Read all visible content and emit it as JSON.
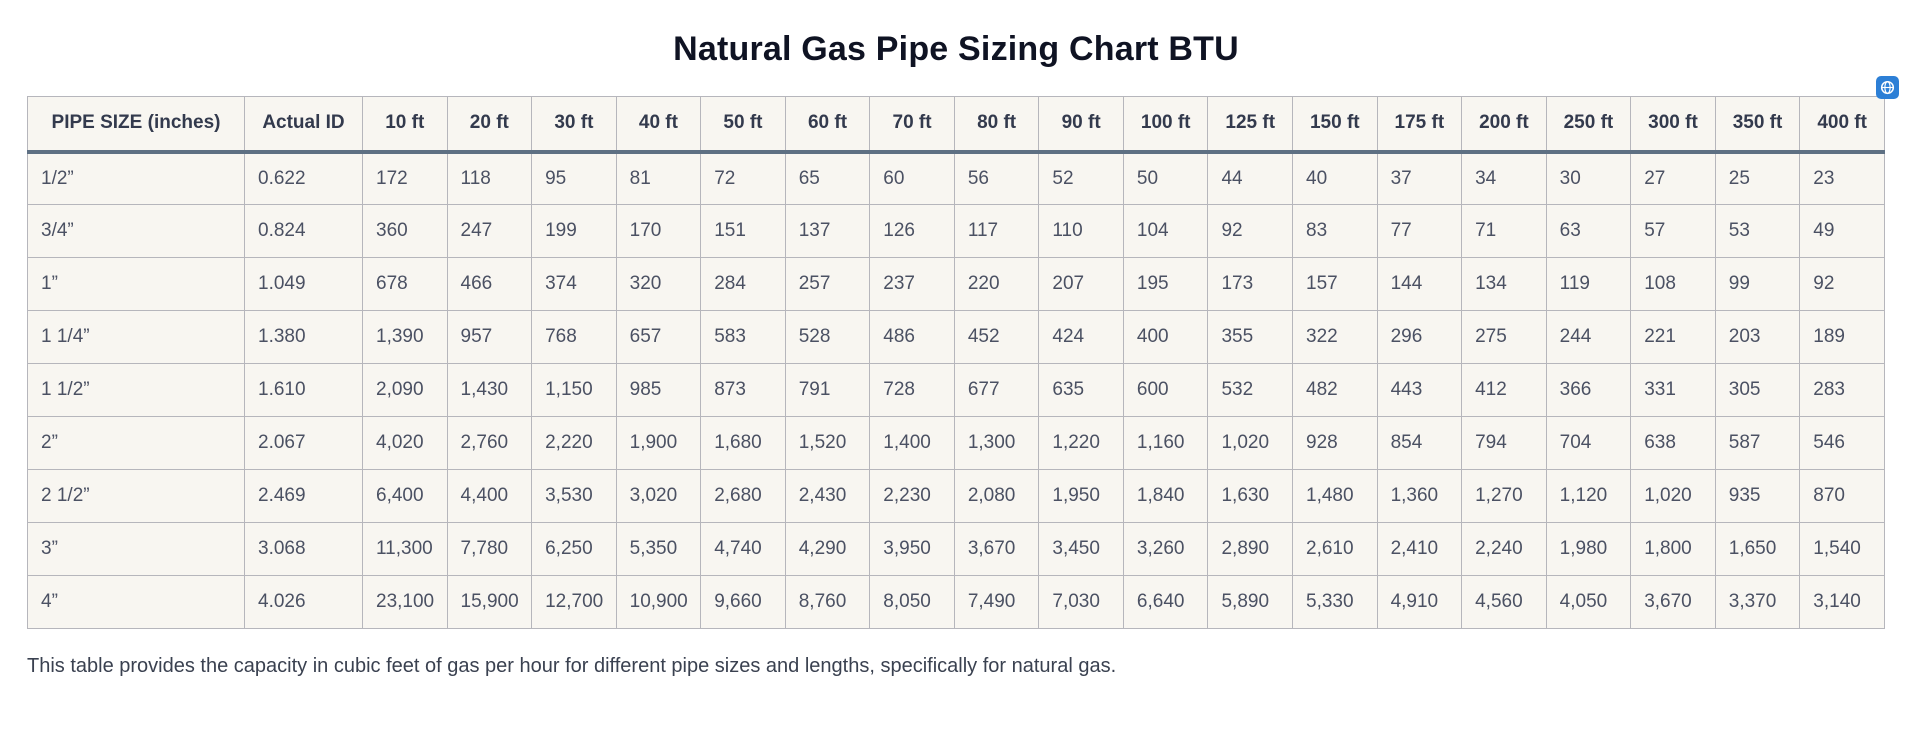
{
  "page": {
    "footnote_label": "table-caption"
  },
  "colors": {
    "cell_background": "#f8f6f1",
    "cell_border": "#b6b6bc",
    "header_rule": "#5e7083",
    "header_text": "#333a4d",
    "body_text": "#4b5163",
    "title_text": "#0f1323",
    "badge_blue": "#2c7fd6",
    "bottom_strip": "#2d2d31"
  },
  "icons": {
    "badge_icon": "globe-icon"
  },
  "chart_data": {
    "type": "table",
    "title": "Natural Gas Pipe Sizing Chart BTU",
    "caption": "This table provides the capacity in cubic feet of gas per hour for different pipe sizes and lengths, specifically for natural gas.",
    "columns": [
      "PIPE SIZE (inches)",
      "Actual ID",
      "10 ft",
      "20 ft",
      "30 ft",
      "40 ft",
      "50 ft",
      "60 ft",
      "70 ft",
      "80 ft",
      "90 ft",
      "100 ft",
      "125 ft",
      "150 ft",
      "175 ft",
      "200 ft",
      "250 ft",
      "300 ft",
      "350 ft",
      "400 ft"
    ],
    "rows": [
      [
        "1/2”",
        "0.622",
        "172",
        "118",
        "95",
        "81",
        "72",
        "65",
        "60",
        "56",
        "52",
        "50",
        "44",
        "40",
        "37",
        "34",
        "30",
        "27",
        "25",
        "23"
      ],
      [
        "3/4”",
        "0.824",
        "360",
        "247",
        "199",
        "170",
        "151",
        "137",
        "126",
        "117",
        "110",
        "104",
        "92",
        "83",
        "77",
        "71",
        "63",
        "57",
        "53",
        "49"
      ],
      [
        "1”",
        "1.049",
        "678",
        "466",
        "374",
        "320",
        "284",
        "257",
        "237",
        "220",
        "207",
        "195",
        "173",
        "157",
        "144",
        "134",
        "119",
        "108",
        "99",
        "92"
      ],
      [
        "1 1/4”",
        "1.380",
        "1,390",
        "957",
        "768",
        "657",
        "583",
        "528",
        "486",
        "452",
        "424",
        "400",
        "355",
        "322",
        "296",
        "275",
        "244",
        "221",
        "203",
        "189"
      ],
      [
        "1 1/2”",
        "1.610",
        "2,090",
        "1,430",
        "1,150",
        "985",
        "873",
        "791",
        "728",
        "677",
        "635",
        "600",
        "532",
        "482",
        "443",
        "412",
        "366",
        "331",
        "305",
        "283"
      ],
      [
        "2”",
        "2.067",
        "4,020",
        "2,760",
        "2,220",
        "1,900",
        "1,680",
        "1,520",
        "1,400",
        "1,300",
        "1,220",
        "1,160",
        "1,020",
        "928",
        "854",
        "794",
        "704",
        "638",
        "587",
        "546"
      ],
      [
        "2 1/2”",
        "2.469",
        "6,400",
        "4,400",
        "3,530",
        "3,020",
        "2,680",
        "2,430",
        "2,230",
        "2,080",
        "1,950",
        "1,840",
        "1,630",
        "1,480",
        "1,360",
        "1,270",
        "1,120",
        "1,020",
        "935",
        "870"
      ],
      [
        "3”",
        "3.068",
        "11,300",
        "7,780",
        "6,250",
        "5,350",
        "4,740",
        "4,290",
        "3,950",
        "3,670",
        "3,450",
        "3,260",
        "2,890",
        "2,610",
        "2,410",
        "2,240",
        "1,980",
        "1,800",
        "1,650",
        "1,540"
      ],
      [
        "4”",
        "4.026",
        "23,100",
        "15,900",
        "12,700",
        "10,900",
        "9,660",
        "8,760",
        "8,050",
        "7,490",
        "7,030",
        "6,640",
        "5,890",
        "5,330",
        "4,910",
        "4,560",
        "4,050",
        "3,670",
        "3,370",
        "3,140"
      ]
    ]
  }
}
